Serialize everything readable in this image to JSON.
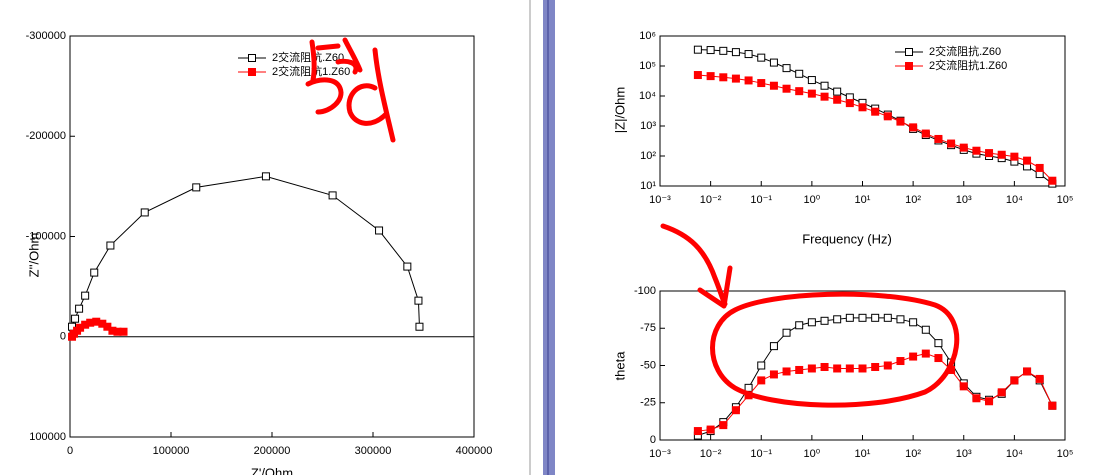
{
  "chart_data": [
    {
      "type": "line",
      "ylabel": "Z''/Ohm",
      "xlabel": "Z'/Ohm",
      "xlim": [
        0,
        400000
      ],
      "xticks": [
        0,
        100000,
        200000,
        300000,
        400000
      ],
      "ylim": [
        -300000,
        100000
      ],
      "yticks": [
        -300000,
        -200000,
        -100000,
        0,
        100000
      ],
      "y_inverted": true,
      "zero_line": true,
      "legend": "top",
      "series": [
        {
          "name": "2交流阻抗.Z60",
          "color": "#000000",
          "filled": false,
          "x": [
            2000,
            5000,
            9000,
            15000,
            24000,
            40000,
            74000,
            125000,
            194000,
            260000,
            306000,
            334000,
            345000,
            346000
          ],
          "values": [
            -10000,
            -18000,
            -28000,
            -41000,
            -64000,
            -91000,
            -124000,
            -149000,
            -160000,
            -141000,
            -106000,
            -70000,
            -36000,
            -10000
          ]
        },
        {
          "name": "2交流阻抗1.Z60",
          "color": "#ff0000",
          "filled": true,
          "x": [
            2000,
            4000,
            7000,
            10000,
            15000,
            20000,
            26000,
            32000,
            37000,
            42000,
            47000,
            53000
          ],
          "values": [
            0,
            -3000,
            -6000,
            -9000,
            -12000,
            -14000,
            -15000,
            -13000,
            -10000,
            -6000,
            -5000,
            -5000
          ]
        }
      ]
    },
    {
      "type": "line",
      "ylabel": "|Z|/Ohm",
      "xlabel": "Frequency (Hz)",
      "xscale": "log",
      "yscale": "log",
      "xlim": [
        0.001,
        100000
      ],
      "xticks": [
        {
          "value": 0.001,
          "label": "10⁻³"
        },
        {
          "value": 0.01,
          "label": "10⁻²"
        },
        {
          "value": 0.1,
          "label": "10⁻¹"
        },
        {
          "value": 1,
          "label": "10⁰"
        },
        {
          "value": 10,
          "label": "10¹"
        },
        {
          "value": 100,
          "label": "10²"
        },
        {
          "value": 1000,
          "label": "10³"
        },
        {
          "value": 10000,
          "label": "10⁴"
        },
        {
          "value": 100000,
          "label": "10⁵"
        }
      ],
      "ylim": [
        10,
        1000000
      ],
      "yticks": [
        {
          "value": 10,
          "label": "10¹"
        },
        {
          "value": 100,
          "label": "10²"
        },
        {
          "value": 1000,
          "label": "10³"
        },
        {
          "value": 10000,
          "label": "10⁴"
        },
        {
          "value": 100000,
          "label": "10⁵"
        },
        {
          "value": 1000000,
          "label": "10⁶"
        }
      ],
      "legend": "top-right",
      "x": [
        0.0056,
        0.01,
        0.0178,
        0.0316,
        0.0562,
        0.1,
        0.178,
        0.316,
        0.562,
        1,
        1.78,
        3.16,
        5.62,
        10,
        17.8,
        31.6,
        56.2,
        100,
        178,
        316,
        562,
        1000,
        1780,
        3160,
        5620,
        10000,
        17800,
        31600,
        56200
      ],
      "series": [
        {
          "name": "2交流阻抗.Z60",
          "color": "#000000",
          "filled": false,
          "values": [
            350000,
            340000,
            320000,
            290000,
            250000,
            190000,
            130000,
            85000,
            55000,
            34000,
            22000,
            14000,
            9000,
            5900,
            3800,
            2400,
            1500,
            800,
            500,
            330,
            230,
            160,
            120,
            100,
            85,
            65,
            45,
            25,
            12
          ]
        },
        {
          "name": "2交流阻抗1.Z60",
          "color": "#ff0000",
          "filled": true,
          "values": [
            50000,
            46000,
            42000,
            38000,
            33000,
            27000,
            22000,
            17500,
            14500,
            12000,
            9500,
            7500,
            5800,
            4200,
            3000,
            2100,
            1400,
            900,
            560,
            370,
            260,
            190,
            150,
            125,
            110,
            95,
            70,
            40,
            15
          ]
        }
      ]
    },
    {
      "type": "line",
      "ylabel": "theta",
      "xscale": "log",
      "xlim": [
        0.001,
        100000
      ],
      "xticks": [
        {
          "value": 0.001,
          "label": "10⁻³"
        },
        {
          "value": 0.01,
          "label": "10⁻²"
        },
        {
          "value": 0.1,
          "label": "10⁻¹"
        },
        {
          "value": 1,
          "label": "10⁰"
        },
        {
          "value": 10,
          "label": "10¹"
        },
        {
          "value": 100,
          "label": "10²"
        },
        {
          "value": 1000,
          "label": "10³"
        },
        {
          "value": 10000,
          "label": "10⁴"
        },
        {
          "value": 100000,
          "label": "10⁵"
        }
      ],
      "ylim": [
        -100,
        0
      ],
      "yticks": [
        -100,
        -75,
        -50,
        -25,
        0
      ],
      "y_inverted": true,
      "x": [
        0.0056,
        0.01,
        0.0178,
        0.0316,
        0.0562,
        0.1,
        0.178,
        0.316,
        0.562,
        1,
        1.78,
        3.16,
        5.62,
        10,
        17.8,
        31.6,
        56.2,
        100,
        178,
        316,
        562,
        1000,
        1780,
        3160,
        5620,
        10000,
        17800,
        31600,
        56200
      ],
      "series": [
        {
          "name": "2交流阻抗.Z60",
          "color": "#000000",
          "filled": false,
          "values": [
            -3,
            -6,
            -12,
            -22,
            -35,
            -50,
            -63,
            -72,
            -77,
            -79,
            -80,
            -81,
            -82,
            -82,
            -82,
            -82,
            -81,
            -79,
            -74,
            -65,
            -52,
            -38,
            -29,
            -27,
            -31,
            -40,
            -46,
            -40,
            -23
          ]
        },
        {
          "name": "2交流阻抗1.Z60",
          "color": "#ff0000",
          "filled": true,
          "values": [
            -6,
            -7,
            -10,
            -20,
            -30,
            -40,
            -44,
            -46,
            -47,
            -48,
            -49,
            -48,
            -48,
            -48,
            -49,
            -50,
            -53,
            -56,
            -58,
            -55,
            -47,
            -36,
            -28,
            -26,
            -32,
            -40,
            -46,
            -41,
            -23
          ]
        }
      ]
    }
  ]
}
